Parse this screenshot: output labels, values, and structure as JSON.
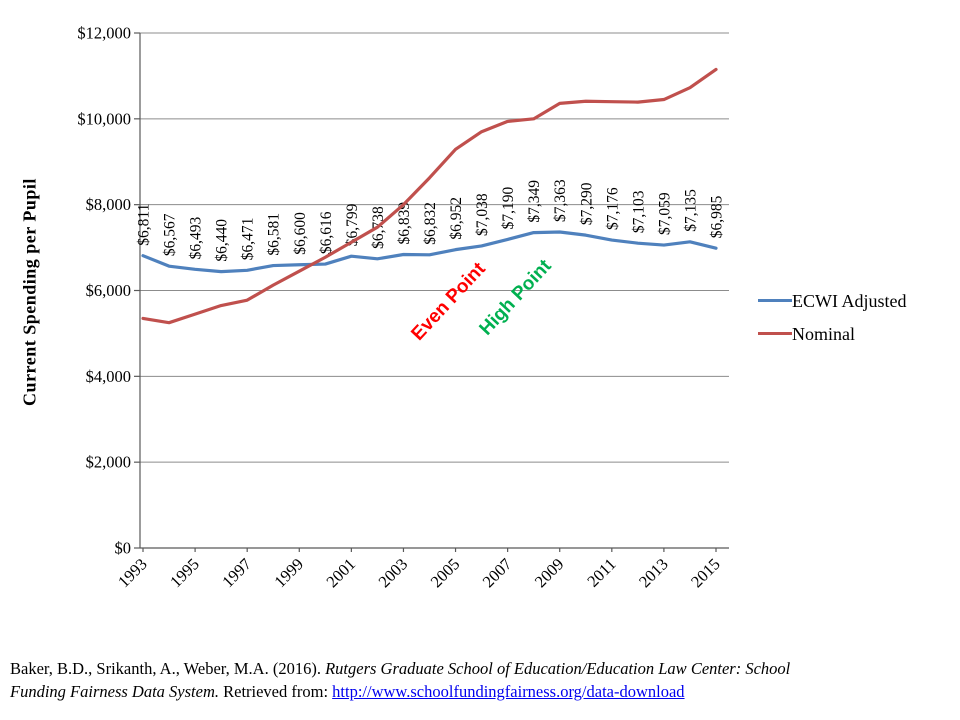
{
  "chart_data": {
    "type": "line",
    "title": "",
    "xlabel": "",
    "ylabel": "Current Spending per Pupil",
    "ylim": [
      0,
      12000
    ],
    "ytick_step": 2000,
    "ytick_labels": [
      "$0",
      "$2,000",
      "$4,000",
      "$6,000",
      "$8,000",
      "$10,000",
      "$12,000"
    ],
    "x": [
      1993,
      1994,
      1995,
      1996,
      1997,
      1998,
      1999,
      2000,
      2001,
      2002,
      2003,
      2004,
      2005,
      2006,
      2007,
      2008,
      2009,
      2010,
      2011,
      2012,
      2013,
      2014,
      2015
    ],
    "xtick_label_interval": 2,
    "grid": true,
    "legend_position": "right",
    "series": [
      {
        "name": "ECWI Adjusted",
        "color": "#4F81BD",
        "values": [
          6811,
          6567,
          6493,
          6440,
          6471,
          6581,
          6600,
          6616,
          6799,
          6738,
          6839,
          6832,
          6952,
          7038,
          7190,
          7349,
          7363,
          7290,
          7176,
          7103,
          7059,
          7135,
          6985
        ],
        "labels": [
          "$6,811",
          "$6,567",
          "$6,493",
          "$6,440",
          "$6,471",
          "$6,581",
          "$6,600",
          "$6,616",
          "$6,799",
          "$6,738",
          "$6,839",
          "$6,832",
          "$6,952",
          "$7,038",
          "$7,190",
          "$7,349",
          "$7,363",
          "$7,290",
          "$7,176",
          "$7,103",
          "$7,059",
          "$7,135",
          "$6,985"
        ]
      },
      {
        "name": "Nominal",
        "color": "#C0504D",
        "values": [
          5350,
          5250,
          5450,
          5650,
          5775,
          6125,
          6450,
          6775,
          7125,
          7475,
          8000,
          8625,
          9290,
          9700,
          9940,
          10000,
          10360,
          10410,
          10400,
          10390,
          10450,
          10725,
          11150
        ]
      }
    ],
    "annotations": [
      {
        "text": "Even Point",
        "color": "#FF0000",
        "x": 449,
        "y": 302,
        "rotate": -47
      },
      {
        "text": "High Point",
        "color": "#00B050",
        "x": 516,
        "y": 298,
        "rotate": -47
      }
    ]
  },
  "citation": {
    "line1": [
      {
        "text": "Baker, B.D., Srikanth, A., Weber, M.A. (2016). ",
        "style": "normal"
      },
      {
        "text": "Rutgers Graduate School of Education/Education Law Center: School",
        "style": "italic"
      }
    ],
    "line2": [
      {
        "text": "Funding Fairness Data System.",
        "style": "italic"
      },
      {
        "text": " Retrieved from: ",
        "style": "normal"
      },
      {
        "text": "http://www.schoolfundingfairness.org/data-download",
        "style": "link"
      }
    ]
  }
}
